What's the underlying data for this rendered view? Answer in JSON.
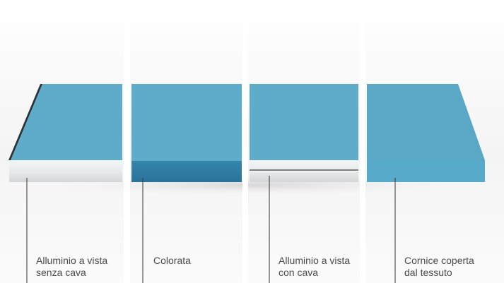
{
  "diagram": {
    "panels": [
      {
        "id": "alluminio-senza-cava",
        "caption_lines": [
          "Alluminio a vista",
          "senza cava"
        ],
        "face_color": "#5eacca",
        "edge_color": "#e9ecec",
        "edge_type": "aluminium"
      },
      {
        "id": "colorata",
        "caption_lines": [
          "Colorata"
        ],
        "face_color": "#5eacca",
        "edge_color": "#2f7ca2",
        "edge_type": "colored"
      },
      {
        "id": "alluminio-con-cava",
        "caption_lines": [
          "Alluminio a vista",
          "con cava"
        ],
        "face_color": "#5eacca",
        "edge_color": "#e9ecec",
        "edge_type": "aluminium-groove"
      },
      {
        "id": "cornice-coperta",
        "caption_lines": [
          "Cornice coperta",
          "dal tessuto"
        ],
        "face_color": "#5aa7c6",
        "edge_color": "#58aacb",
        "edge_type": "fabric"
      }
    ],
    "leader_line_color": "#333333",
    "divider_color": "#ffffff"
  }
}
